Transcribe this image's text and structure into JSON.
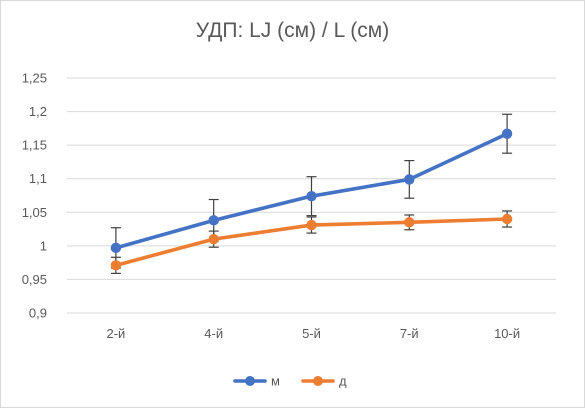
{
  "chart_data": {
    "type": "line",
    "title": "УДП: LJ (см) / L (см)",
    "categories": [
      "2-й",
      "4-й",
      "5-й",
      "7-й",
      "10-й"
    ],
    "ylim": [
      0.9,
      1.25
    ],
    "yticks": [
      0.9,
      0.95,
      1,
      1.05,
      1.1,
      1.15,
      1.2,
      1.25
    ],
    "ytick_labels": [
      "0,9",
      "0,95",
      "1",
      "1,05",
      "1,1",
      "1,15",
      "1,2",
      "1,25"
    ],
    "grid": "horizontal",
    "legend_position": "bottom",
    "series": [
      {
        "name": "м",
        "color": "#4472C4",
        "values": [
          0.997,
          1.038,
          1.074,
          1.099,
          1.167
        ],
        "error": [
          0.03,
          0.031,
          0.029,
          0.028,
          0.029
        ]
      },
      {
        "name": "д",
        "color": "#ED7D31",
        "values": [
          0.971,
          1.01,
          1.031,
          1.035,
          1.04
        ],
        "error": [
          0.012,
          0.012,
          0.012,
          0.011,
          0.012
        ]
      }
    ]
  }
}
